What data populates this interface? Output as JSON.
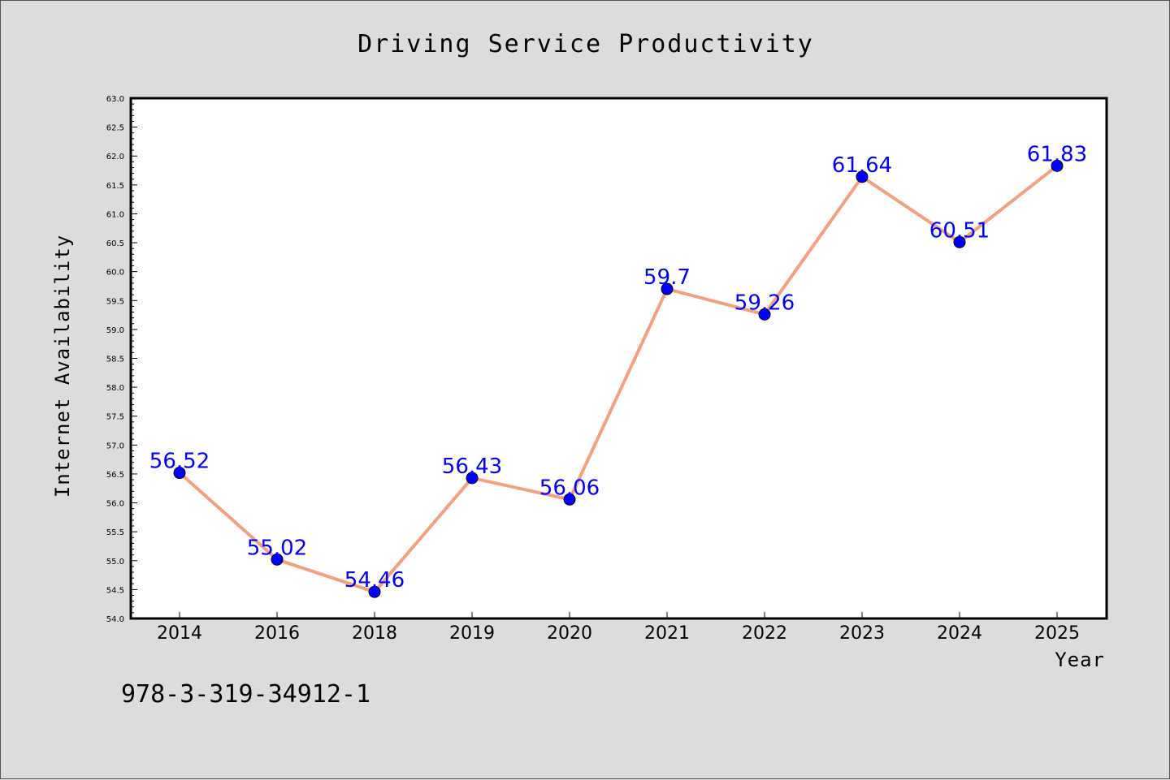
{
  "chart_data": {
    "type": "line",
    "title": "Driving Service Productivity",
    "xlabel": "Year",
    "ylabel": "Internet Availability",
    "categories": [
      "2014",
      "2016",
      "2018",
      "2019",
      "2020",
      "2021",
      "2022",
      "2023",
      "2024",
      "2025"
    ],
    "series": [
      {
        "values": [
          56.52,
          55.02,
          54.46,
          56.43,
          56.06,
          59.7,
          59.26,
          61.64,
          60.51,
          61.83
        ],
        "line_color": "#f4a080",
        "marker_color": "#0000ff",
        "label_color": "#0000ff"
      }
    ],
    "ylim": [
      54.0,
      63.0
    ],
    "yticks": [
      "54.0",
      "54.5",
      "55.0",
      "55.5",
      "56.0",
      "56.5",
      "57.0",
      "57.5",
      "58.0",
      "58.5",
      "59.0",
      "59.5",
      "60.0",
      "60.5",
      "61.0",
      "61.5",
      "62.0",
      "62.5",
      "63.0"
    ],
    "data_labels": [
      "56.52",
      "55.02",
      "54.46",
      "56.43",
      "56.06",
      "59.7",
      "59.26",
      "61.64",
      "60.51",
      "61.83"
    ],
    "grid": false,
    "legend": "none"
  },
  "footnote": "978-3-319-34912-1",
  "colors": {
    "background": "#dcdcdc",
    "plot_background": "#ffffff",
    "line": "#f4a080",
    "marker": "#0000ff",
    "data_label": "#0000ff"
  }
}
